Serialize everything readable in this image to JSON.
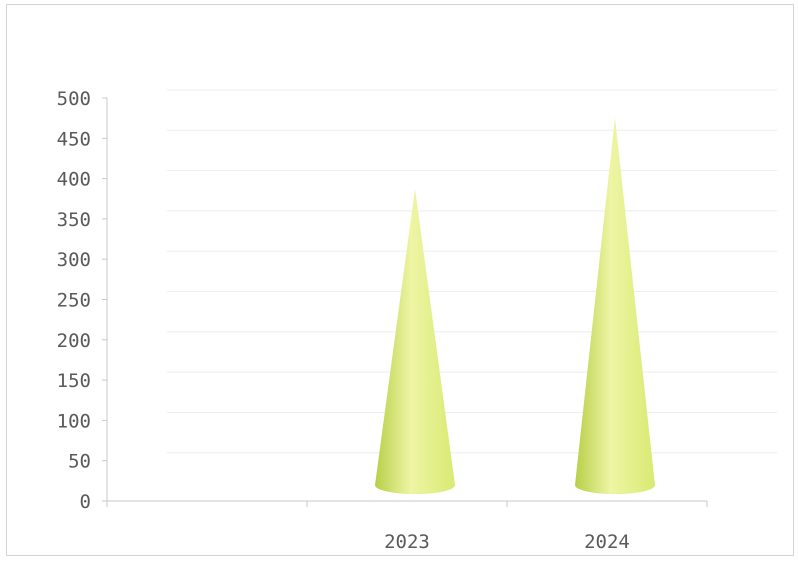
{
  "chart_data": {
    "type": "bar",
    "shape": "cone-3d",
    "categories": [
      "",
      "2023",
      "2024"
    ],
    "series": [
      {
        "values": [
          0,
          390,
          478
        ]
      }
    ],
    "ylim": [
      0,
      500
    ],
    "yticks": [
      0,
      50,
      100,
      150,
      200,
      250,
      300,
      350,
      400,
      450,
      500
    ],
    "grid": true,
    "legend": "none",
    "colors": {
      "cone_light": "#eef5a4",
      "cone_mid": "#d9ea72",
      "cone_dark": "#b8cf48",
      "gridline": "#eeeeee",
      "axis": "#c8c8c8",
      "text": "#5a5a5a"
    }
  }
}
